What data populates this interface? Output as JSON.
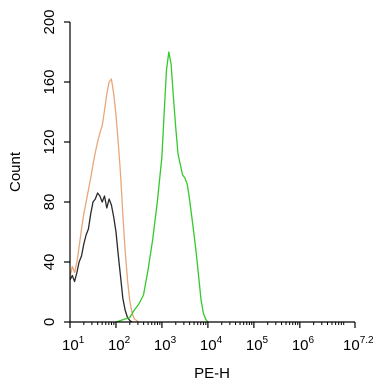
{
  "chart_data": {
    "type": "line",
    "title": "",
    "xlabel": "PE-H",
    "ylabel": "Count",
    "x_scale": "log10",
    "xlim": [
      10,
      15848931.92
    ],
    "ylim": [
      0,
      200
    ],
    "grid": false,
    "legend": "none",
    "x_ticks": [
      {
        "base": "10",
        "exp": "1",
        "value": 10
      },
      {
        "base": "10",
        "exp": "2",
        "value": 100
      },
      {
        "base": "10",
        "exp": "3",
        "value": 1000
      },
      {
        "base": "10",
        "exp": "4",
        "value": 10000
      },
      {
        "base": "10",
        "exp": "5",
        "value": 100000
      },
      {
        "base": "10",
        "exp": "6",
        "value": 1000000
      },
      {
        "base": "10",
        "exp": "7.2",
        "value": 15848931.92
      }
    ],
    "y_ticks": [
      "0",
      "40",
      "80",
      "120",
      "160",
      "200"
    ],
    "y_tick_values": [
      0,
      40,
      80,
      120,
      160,
      200
    ],
    "series": [
      {
        "color": "#e8a77a",
        "x": [
          10,
          11.2,
          12.6,
          14.1,
          15.8,
          17.8,
          20,
          22.4,
          25.1,
          28.2,
          31.6,
          35.5,
          39.8,
          44.7,
          50.1,
          56.2,
          63.1,
          70.8,
          79.4,
          89.1,
          100,
          112,
          126,
          141,
          158,
          178,
          200,
          224,
          251,
          282,
          316
        ],
        "y": [
          30,
          37,
          33,
          40,
          50,
          62,
          72,
          80,
          88,
          96,
          105,
          113,
          120,
          126,
          131,
          141,
          152,
          160,
          162,
          152,
          138,
          120,
          98,
          72,
          48,
          28,
          14,
          6,
          2,
          1,
          0
        ]
      },
      {
        "color": "#2a2a2a",
        "x": [
          10,
          11.2,
          12.6,
          14.1,
          15.8,
          17.8,
          20,
          22.4,
          25.1,
          28.2,
          31.6,
          35.5,
          39.8,
          44.7,
          50.1,
          56.2,
          63.1,
          70.8,
          79.4,
          89.1,
          100,
          112,
          126,
          141,
          158,
          178,
          200,
          224
        ],
        "y": [
          28,
          31,
          27,
          33,
          40,
          44,
          52,
          58,
          62,
          72,
          80,
          82,
          86,
          84,
          80,
          84,
          76,
          82,
          78,
          70,
          60,
          45,
          30,
          16,
          8,
          3,
          1,
          0
        ]
      },
      {
        "color": "#35c92c",
        "x": [
          100,
          126,
          158,
          200,
          251,
          316,
          398,
          501,
          631,
          794,
          1000,
          1122,
          1259,
          1413,
          1585,
          1778,
          1995,
          2239,
          2512,
          2818,
          3162,
          3548,
          3981,
          4467,
          5012,
          5623,
          6310,
          7079,
          7943,
          8913,
          10000
        ],
        "y": [
          0,
          1,
          2,
          3,
          8,
          12,
          18,
          35,
          55,
          80,
          110,
          140,
          168,
          180,
          172,
          150,
          130,
          112,
          105,
          98,
          96,
          92,
          82,
          70,
          58,
          45,
          30,
          15,
          6,
          2,
          0
        ]
      }
    ]
  }
}
